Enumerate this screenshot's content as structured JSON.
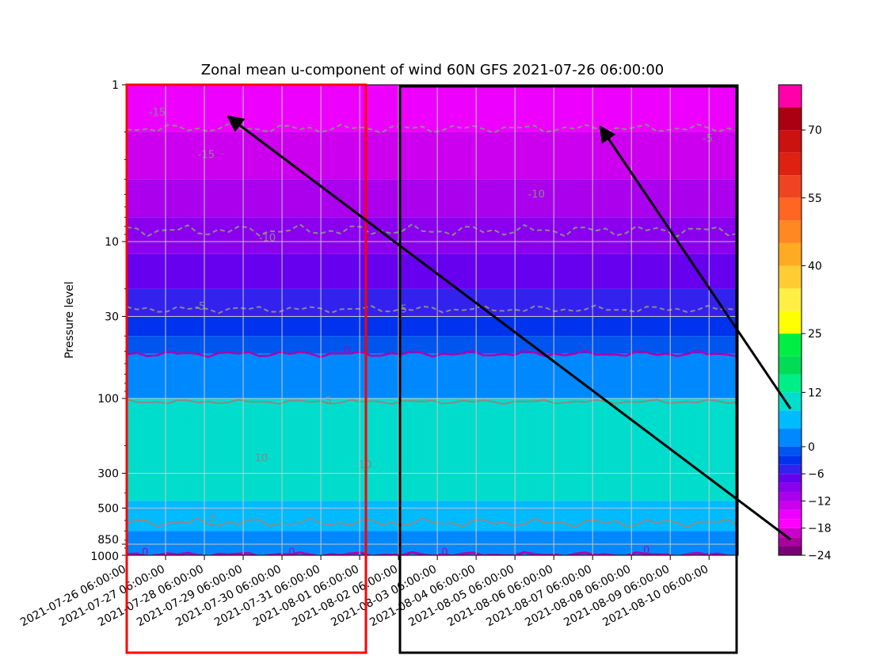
{
  "chart_data": {
    "type": "heatmap",
    "title": "Zonal mean u-component of wind 60N GFS 2021-07-26 06:00:00",
    "ylabel": "Pressure level",
    "xlabel": "",
    "y_scale": "log",
    "y_inverted": true,
    "ylim": [
      1000,
      1
    ],
    "y_ticks": [
      "1",
      "10",
      "30",
      "100",
      "300",
      "500",
      "850",
      "1000"
    ],
    "x_ticks": [
      "2021-07-26 06:00:00",
      "2021-07-27 06:00:00",
      "2021-07-28 06:00:00",
      "2021-07-29 06:00:00",
      "2021-07-30 06:00:00",
      "2021-07-31 06:00:00",
      "2021-08-01 06:00:00",
      "2021-08-02 06:00:00",
      "2021-08-03 06:00:00",
      "2021-08-04 06:00:00",
      "2021-08-05 06:00:00",
      "2021-08-06 06:00:00",
      "2021-08-07 06:00:00",
      "2021-08-08 06:00:00",
      "2021-08-09 06:00:00",
      "2021-08-10 06:00:00"
    ],
    "colorbar": {
      "range": [
        -24,
        80
      ],
      "tick_labels": [
        "70",
        "55",
        "40",
        "25",
        "12",
        "0",
        "−6",
        "−12",
        "−18",
        "−24"
      ],
      "tick_values": [
        70,
        55,
        40,
        25,
        12,
        0,
        -6,
        -12,
        -18,
        -24
      ],
      "levels": [
        -24,
        -22,
        -20,
        -18,
        -16,
        -14,
        -12,
        -10,
        -8,
        -6,
        -4,
        -2,
        0,
        4,
        8,
        12,
        16,
        20,
        25,
        30,
        35,
        40,
        45,
        50,
        55,
        60,
        65,
        70,
        75,
        80
      ],
      "colors": [
        "#7a0077",
        "#a8009c",
        "#cc00cc",
        "#ff00ff",
        "#ee00ff",
        "#cc00ee",
        "#aa00ee",
        "#8a00ee",
        "#6600ee",
        "#3322ee",
        "#0033ee",
        "#0055ee",
        "#0088ff",
        "#00bbff",
        "#00ddcc",
        "#00ee88",
        "#00dd55",
        "#00ee44",
        "#ffff00",
        "#ffee44",
        "#ffcc33",
        "#ffaa22",
        "#ff8822",
        "#ff6622",
        "#ee4422",
        "#dd2211",
        "#cc1111",
        "#aa0011",
        "#ff00aa"
      ]
    },
    "contour_labels": [
      "-15",
      "-15",
      "-10",
      "-10",
      "-5",
      "-5",
      "-5",
      "0",
      "0",
      "0",
      "0",
      "0",
      "5",
      "5",
      "10",
      "10"
    ],
    "band_levels_u": [
      {
        "p_top": 1,
        "p_bottom": 2,
        "u": -16
      },
      {
        "p_top": 2,
        "p_bottom": 4,
        "u": -14
      },
      {
        "p_top": 4,
        "p_bottom": 7,
        "u": -12
      },
      {
        "p_top": 7,
        "p_bottom": 12,
        "u": -10
      },
      {
        "p_top": 12,
        "p_bottom": 20,
        "u": -8
      },
      {
        "p_top": 20,
        "p_bottom": 30,
        "u": -6
      },
      {
        "p_top": 30,
        "p_bottom": 40,
        "u": -4
      },
      {
        "p_top": 40,
        "p_bottom": 52,
        "u": -2
      },
      {
        "p_top": 52,
        "p_bottom": 100,
        "u": 2
      },
      {
        "p_top": 100,
        "p_bottom": 450,
        "u": 8
      },
      {
        "p_top": 450,
        "p_bottom": 700,
        "u": 4
      },
      {
        "p_top": 700,
        "p_bottom": 1000,
        "u": 2
      }
    ],
    "annotations": {
      "red_box": "2021-07-26 to 2021-08-02",
      "black_box": "2021-08-03 to 2021-08-11"
    }
  }
}
